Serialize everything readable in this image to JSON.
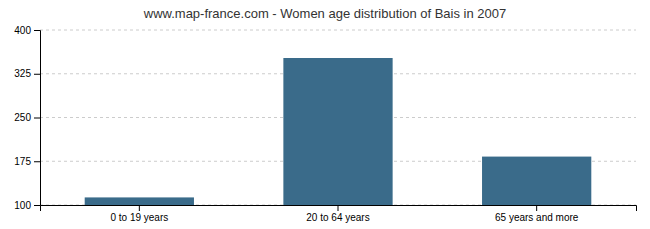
{
  "chart_data": {
    "type": "bar",
    "title": "www.map-france.com - Women age distribution of Bais in 2007",
    "categories": [
      "0 to 19 years",
      "20 to 64 years",
      "65 years and more"
    ],
    "values": [
      113,
      352,
      183
    ],
    "color": "#3a6b8a",
    "ylim": [
      100,
      400
    ],
    "yticks": [
      100,
      175,
      250,
      325,
      400
    ],
    "grid": true
  }
}
